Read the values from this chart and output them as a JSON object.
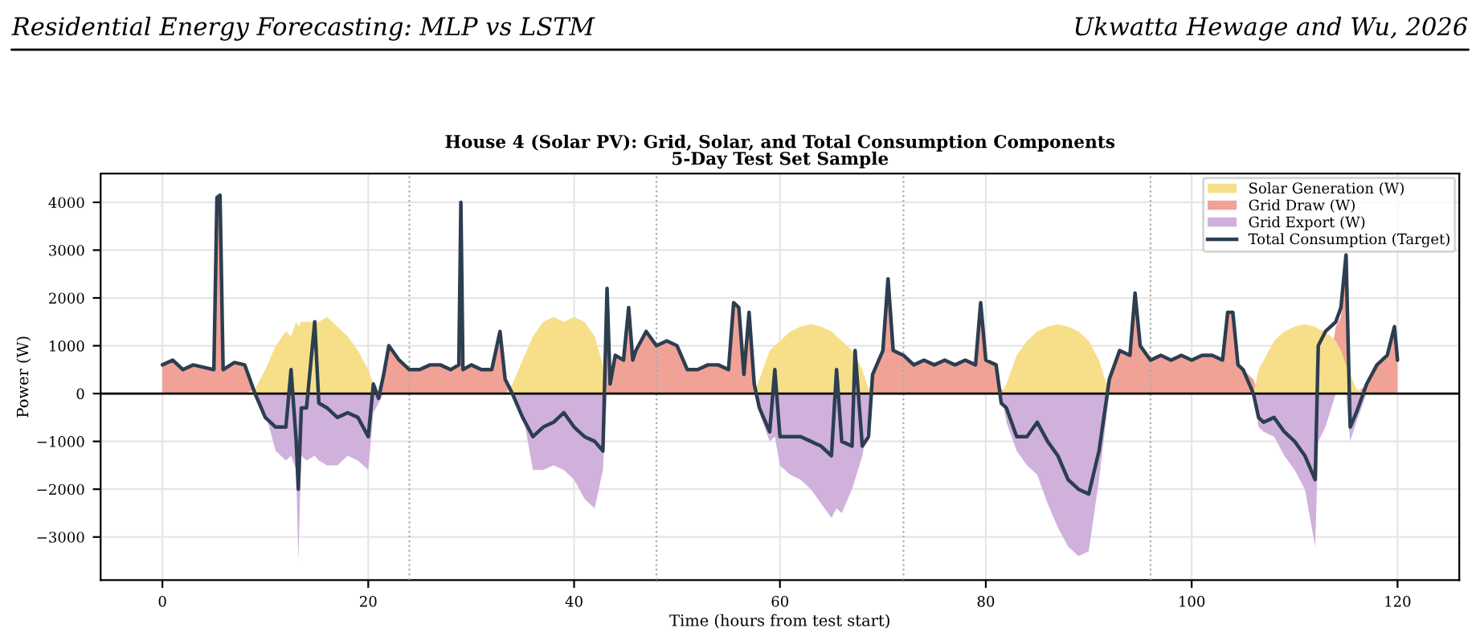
{
  "chart_data": {
    "type": "area",
    "title": "House 4 (Solar PV): Grid, Solar, and Total Consumption Components",
    "subtitle": "5-Day Test Set Sample",
    "xlabel": "Time (hours from test start)",
    "ylabel": "Power (W)",
    "annotations": [
      "Residential Energy Forecasting: MLP vs LSTM",
      "Ukwatta Hewage and Wu, 2026"
    ],
    "x": [
      0,
      1,
      2,
      3,
      4,
      5,
      5.3,
      5.6,
      5.9,
      7,
      8,
      9,
      10,
      11,
      12,
      12.5,
      13,
      13.2,
      13.5,
      14,
      14.8,
      15.2,
      16,
      17,
      18,
      19,
      20,
      20.5,
      21,
      21.5,
      22,
      23,
      24,
      25,
      26,
      27,
      28,
      28.8,
      29,
      29.2,
      30,
      31,
      32,
      32.8,
      33.3,
      34,
      35,
      36,
      37,
      38,
      39,
      40,
      41,
      42,
      42.8,
      43.2,
      43.5,
      44,
      44.8,
      45.3,
      45.7,
      46,
      47,
      48,
      49,
      50,
      51,
      52,
      53,
      54,
      55,
      55.5,
      56,
      56.5,
      57,
      57.5,
      58,
      59,
      59.5,
      60,
      61,
      62,
      63,
      64,
      65,
      65.5,
      66,
      67,
      67.3,
      68,
      68.6,
      69,
      70,
      70.5,
      71,
      72,
      73,
      74,
      75,
      76,
      77,
      78,
      79,
      79.5,
      80,
      81,
      81.5,
      82,
      83,
      84,
      85,
      86,
      87,
      88,
      89,
      90,
      91,
      92,
      93,
      94,
      94.5,
      95,
      96,
      97,
      98,
      99,
      100,
      101,
      102,
      103,
      103.5,
      104,
      104.5,
      105,
      106,
      106.5,
      107,
      108,
      109,
      110,
      111,
      112,
      112.3,
      113,
      114,
      114.5,
      115,
      115.4,
      116,
      117,
      118,
      119,
      119.7,
      120
    ],
    "series": [
      {
        "name": "Solar Generation (W)",
        "type": "area",
        "color": "#f7df8a",
        "values": [
          0,
          0,
          0,
          0,
          0,
          0,
          0,
          0,
          0,
          0,
          0,
          100,
          500,
          1000,
          1300,
          1200,
          1500,
          1400,
          1500,
          1500,
          1500,
          1500,
          1600,
          1400,
          1200,
          900,
          500,
          200,
          0,
          0,
          0,
          0,
          0,
          0,
          0,
          0,
          0,
          0,
          0,
          0,
          0,
          0,
          0,
          0,
          0,
          200,
          700,
          1200,
          1500,
          1600,
          1500,
          1600,
          1500,
          1200,
          600,
          0,
          0,
          0,
          0,
          0,
          0,
          0,
          0,
          0,
          0,
          0,
          0,
          0,
          0,
          0,
          0,
          0,
          0,
          0,
          0,
          0,
          300,
          900,
          1000,
          1100,
          1300,
          1400,
          1450,
          1400,
          1300,
          1200,
          1100,
          900,
          800,
          500,
          100,
          0,
          0,
          0,
          0,
          0,
          0,
          0,
          0,
          0,
          0,
          0,
          0,
          0,
          0,
          0,
          0,
          200,
          800,
          1100,
          1300,
          1400,
          1450,
          1400,
          1300,
          1100,
          700,
          0,
          0,
          0,
          0,
          0,
          0,
          0,
          0,
          0,
          0,
          0,
          0,
          0,
          0,
          0,
          0,
          0,
          0,
          500,
          700,
          1100,
          1300,
          1400,
          1450,
          1400,
          1350,
          1300,
          1100,
          900,
          600,
          400,
          100,
          0,
          0,
          0,
          0,
          0
        ]
      },
      {
        "name": "Grid Draw (W)",
        "type": "area",
        "color": "#f0a297",
        "values": [
          600,
          700,
          500,
          600,
          550,
          500,
          4100,
          4150,
          500,
          650,
          600,
          0,
          0,
          0,
          0,
          0,
          0,
          0,
          0,
          0,
          0,
          0,
          0,
          0,
          0,
          0,
          0,
          0,
          0,
          400,
          1000,
          700,
          500,
          500,
          600,
          600,
          500,
          600,
          4000,
          500,
          600,
          500,
          500,
          1300,
          300,
          0,
          0,
          0,
          0,
          0,
          0,
          0,
          0,
          0,
          0,
          2200,
          200,
          800,
          700,
          1800,
          700,
          900,
          1300,
          1000,
          1100,
          1000,
          500,
          500,
          600,
          600,
          500,
          1900,
          1800,
          400,
          1700,
          200,
          0,
          0,
          0,
          0,
          0,
          0,
          0,
          0,
          0,
          0,
          0,
          0,
          0,
          0,
          0,
          400,
          900,
          2400,
          900,
          800,
          600,
          700,
          600,
          700,
          600,
          700,
          600,
          1900,
          700,
          600,
          100,
          0,
          0,
          0,
          0,
          0,
          0,
          0,
          0,
          0,
          0,
          300,
          900,
          800,
          2100,
          1000,
          700,
          800,
          700,
          800,
          700,
          800,
          800,
          700,
          1700,
          1700,
          600,
          500,
          300,
          0,
          0,
          0,
          0,
          0,
          0,
          0,
          0,
          0,
          1400,
          1600,
          2900,
          0,
          0,
          200,
          600,
          800,
          1400,
          700
        ]
      },
      {
        "name": "Grid Export (W)",
        "type": "area",
        "color": "#cfb1dc",
        "values": [
          0,
          0,
          0,
          0,
          0,
          0,
          0,
          0,
          0,
          0,
          0,
          0,
          -400,
          -1200,
          -1400,
          -1300,
          -1600,
          -3500,
          -1300,
          -1400,
          -1300,
          -1400,
          -1500,
          -1500,
          -1300,
          -1400,
          -1600,
          -400,
          -200,
          0,
          0,
          0,
          0,
          0,
          0,
          0,
          0,
          0,
          0,
          0,
          0,
          0,
          0,
          0,
          0,
          0,
          -400,
          -1600,
          -1600,
          -1500,
          -1600,
          -1800,
          -2200,
          -2400,
          -1600,
          0,
          0,
          0,
          0,
          0,
          0,
          0,
          0,
          0,
          0,
          0,
          0,
          0,
          0,
          0,
          0,
          0,
          0,
          0,
          0,
          0,
          -400,
          -1000,
          -900,
          -1500,
          -1700,
          -1800,
          -2000,
          -2300,
          -2600,
          -2400,
          -2500,
          -2000,
          -1800,
          -1300,
          -600,
          0,
          0,
          0,
          0,
          0,
          0,
          0,
          0,
          0,
          0,
          0,
          0,
          0,
          0,
          0,
          0,
          -600,
          -1200,
          -1500,
          -1700,
          -2300,
          -2800,
          -3200,
          -3400,
          -3300,
          -1800,
          0,
          0,
          0,
          0,
          0,
          0,
          0,
          0,
          0,
          0,
          0,
          0,
          0,
          0,
          0,
          0,
          0,
          0,
          -700,
          -800,
          -900,
          -1300,
          -1600,
          -2000,
          -3200,
          -1000,
          -700,
          0,
          0,
          0,
          -1000,
          -600,
          0,
          0,
          0,
          0,
          0
        ]
      },
      {
        "name": "Total Consumption (Target)",
        "type": "line",
        "color": "#2c3e50",
        "values": [
          600,
          700,
          500,
          600,
          550,
          500,
          4100,
          4150,
          500,
          650,
          600,
          0,
          -500,
          -700,
          -700,
          500,
          -1000,
          -2000,
          -300,
          -300,
          1500,
          -200,
          -300,
          -500,
          -400,
          -500,
          -900,
          200,
          -100,
          400,
          1000,
          700,
          500,
          500,
          600,
          600,
          500,
          600,
          4000,
          500,
          600,
          500,
          500,
          1300,
          300,
          0,
          -500,
          -900,
          -700,
          -600,
          -400,
          -700,
          -900,
          -1000,
          -1200,
          2200,
          200,
          800,
          700,
          1800,
          700,
          900,
          1300,
          1000,
          1100,
          1000,
          500,
          500,
          600,
          600,
          500,
          1900,
          1800,
          400,
          1700,
          200,
          -300,
          -800,
          500,
          -900,
          -900,
          -900,
          -1000,
          -1100,
          -1300,
          500,
          -1000,
          -1100,
          900,
          -1100,
          -900,
          400,
          900,
          2400,
          900,
          800,
          600,
          700,
          600,
          700,
          600,
          700,
          600,
          1900,
          700,
          600,
          -200,
          -300,
          -900,
          -900,
          -600,
          -1000,
          -1300,
          -1800,
          -2000,
          -2100,
          -1200,
          300,
          900,
          800,
          2100,
          1000,
          700,
          800,
          700,
          800,
          700,
          800,
          800,
          700,
          1700,
          1700,
          600,
          500,
          0,
          -500,
          -600,
          -500,
          -800,
          -1000,
          -1300,
          -1800,
          1000,
          1300,
          1500,
          1800,
          2900,
          -700,
          -400,
          200,
          600,
          800,
          1400,
          700
        ]
      }
    ],
    "xlim": [
      -6,
      126
    ],
    "ylim": [
      -3900,
      4600
    ],
    "xticks": [
      0,
      20,
      40,
      60,
      80,
      100,
      120
    ],
    "yticks": [
      -3000,
      -2000,
      -1000,
      0,
      1000,
      2000,
      3000,
      4000
    ],
    "ref_lines": [
      {
        "axis": "x",
        "value": 24,
        "color": "#aaaaaa",
        "line_style": "dotted"
      },
      {
        "axis": "x",
        "value": 48,
        "color": "#aaaaaa",
        "line_style": "dotted"
      },
      {
        "axis": "x",
        "value": 72,
        "color": "#aaaaaa",
        "line_style": "dotted"
      },
      {
        "axis": "x",
        "value": 96,
        "color": "#aaaaaa",
        "line_style": "dotted"
      },
      {
        "axis": "y",
        "value": 0,
        "color": "#000000",
        "line_style": "solid"
      }
    ],
    "grid": true,
    "legend": "top right"
  }
}
